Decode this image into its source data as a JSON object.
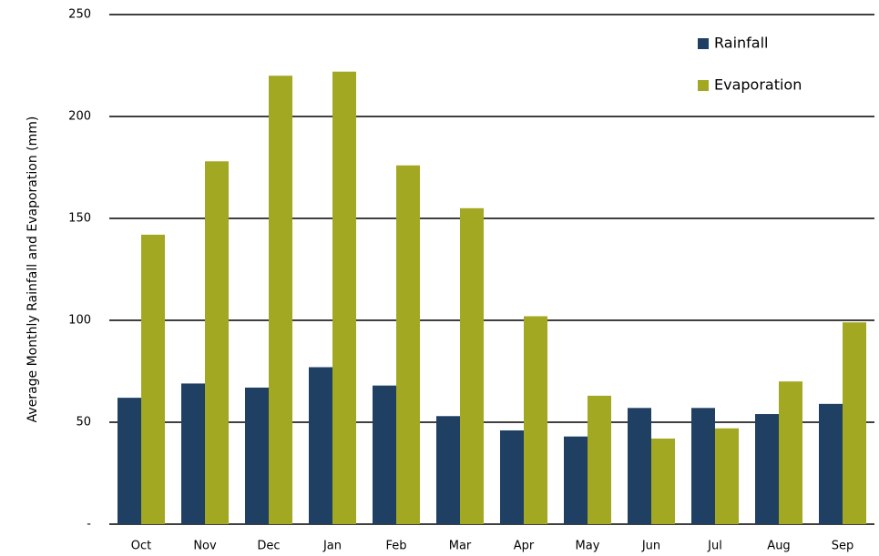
{
  "chart_data": {
    "type": "bar",
    "y_label": "Average Monthly Rainfall and Evaporation (mm)",
    "categories": [
      "Oct",
      "Nov",
      "Dec",
      "Jan",
      "Feb",
      "Mar",
      "Apr",
      "May",
      "Jun",
      "Jul",
      "Aug",
      "Sep"
    ],
    "series": [
      {
        "name": "Rainfall",
        "color": "#1f3f63",
        "values": [
          62,
          69,
          67,
          77,
          68,
          53,
          46,
          43,
          57,
          57,
          54,
          59
        ]
      },
      {
        "name": "Evaporation",
        "color": "#a3a822",
        "values": [
          142,
          178,
          220,
          222,
          176,
          155,
          102,
          63,
          42,
          47,
          70,
          99
        ]
      }
    ],
    "ylim": [
      0,
      250
    ],
    "yticks": [
      {
        "value": 0,
        "label": "-"
      },
      50,
      100,
      150,
      200,
      250
    ],
    "grid": true,
    "legend": "top-right"
  }
}
